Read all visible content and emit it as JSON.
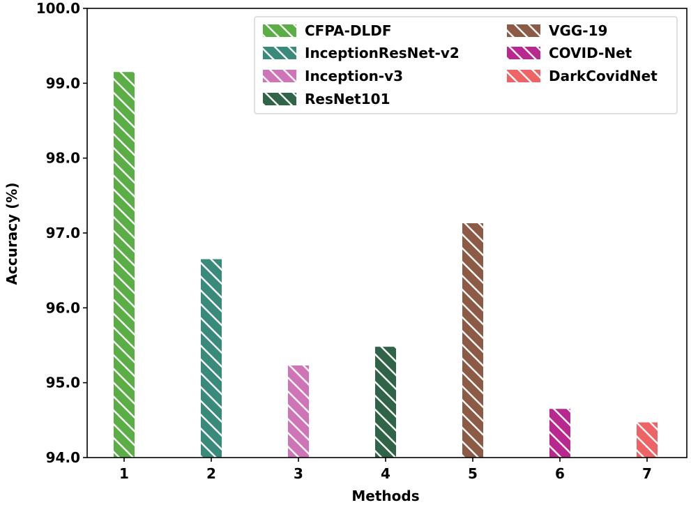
{
  "chart_data": {
    "type": "bar",
    "title": "",
    "xlabel": "Methods",
    "ylabel": "Accuracy (%)",
    "categories": [
      "1",
      "2",
      "3",
      "4",
      "5",
      "6",
      "7"
    ],
    "values": [
      99.15,
      96.65,
      95.23,
      95.48,
      97.13,
      94.65,
      94.47
    ],
    "series_names": [
      "CFPA-DLDF",
      "InceptionResNet-v2",
      "Inception-v3",
      "ResNet101",
      "VGG-19",
      "COVID-Net",
      "DarkCovidNet"
    ],
    "colors": [
      "#5aae45",
      "#3a8a7c",
      "#d074b8",
      "#2f6448",
      "#8c5a45",
      "#b8288e",
      "#ee6366"
    ],
    "hatch": "diagonal-backslash",
    "ylim": [
      94.0,
      100.0
    ],
    "yticks": [
      "94.0",
      "95.0",
      "96.0",
      "97.0",
      "98.0",
      "99.0",
      "100.0"
    ],
    "grid": false,
    "legend_position": "top-right",
    "legend_columns": 2
  }
}
